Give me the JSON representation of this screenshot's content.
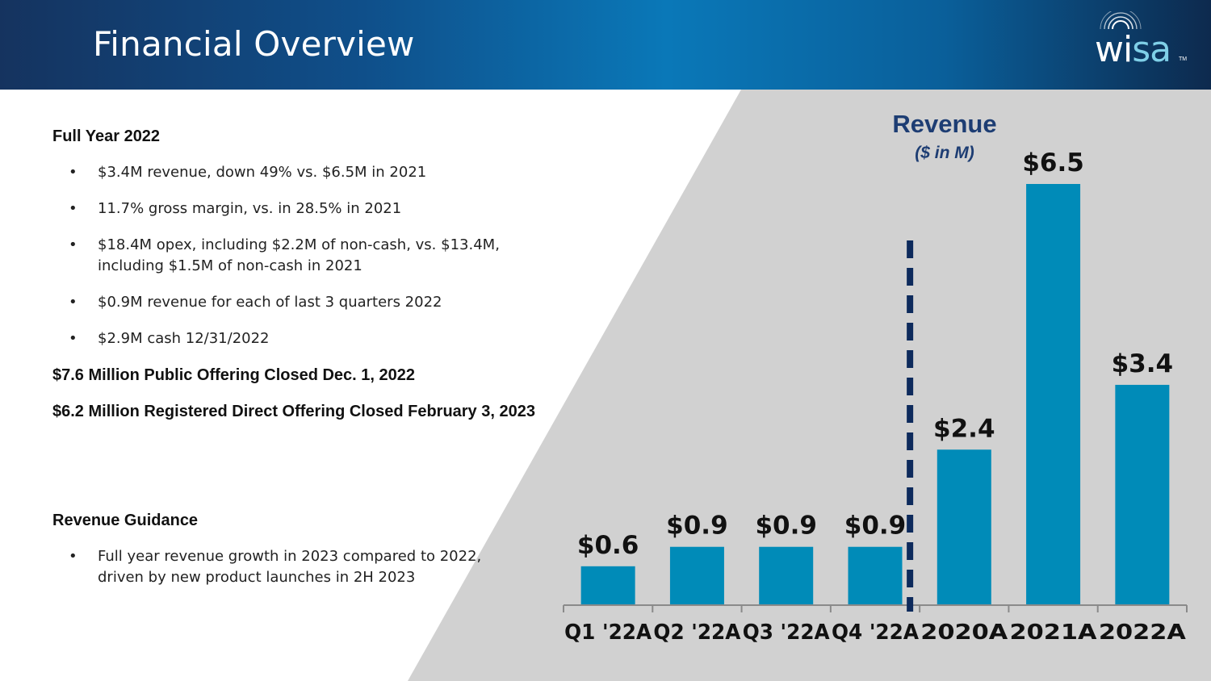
{
  "header": {
    "title": "Financial Overview",
    "logo": {
      "wi": "wi",
      "sa": "sa",
      "tm": "TM"
    }
  },
  "left": {
    "full_year_heading": "Full Year 2022",
    "full_year_bullets": [
      "$3.4M revenue, down 49% vs. $6.5M in 2021",
      "11.7% gross margin, vs. in 28.5% in 2021",
      "$18.4M opex, including $2.2M of non-cash, vs. $13.4M, including $1.5M of non-cash in 2021",
      "$0.9M revenue for each of last 3 quarters 2022",
      "$2.9M cash 12/31/2022"
    ],
    "offering_1": "$7.6 Million Public Offering Closed Dec. 1, 2022",
    "offering_2": "$6.2 Million Registered Direct Offering Closed February 3, 2023",
    "guidance_heading": "Revenue Guidance",
    "guidance_bullets": [
      "Full year revenue growth in 2023 compared to 2022, driven by new product launches in 2H 2023"
    ]
  },
  "chart_data": {
    "type": "bar",
    "title": "Revenue",
    "subtitle": "($ in M)",
    "categories": [
      "Q1 '22A",
      "Q2 '22A",
      "Q3 '22A",
      "Q4 '22A",
      "2020A",
      "2021A",
      "2022A"
    ],
    "values": [
      0.6,
      0.9,
      0.9,
      0.9,
      2.4,
      6.5,
      3.4
    ],
    "data_labels": [
      "$0.6",
      "$0.9",
      "$0.9",
      "$0.9",
      "$2.4",
      "$6.5",
      "$3.4"
    ],
    "ylim": [
      0,
      6.5
    ],
    "grid": false,
    "legend": "none",
    "bar_color": "#008bb8",
    "divider": {
      "after_category_index": 3,
      "style": "dashed",
      "color": "#0d2a5c"
    }
  }
}
